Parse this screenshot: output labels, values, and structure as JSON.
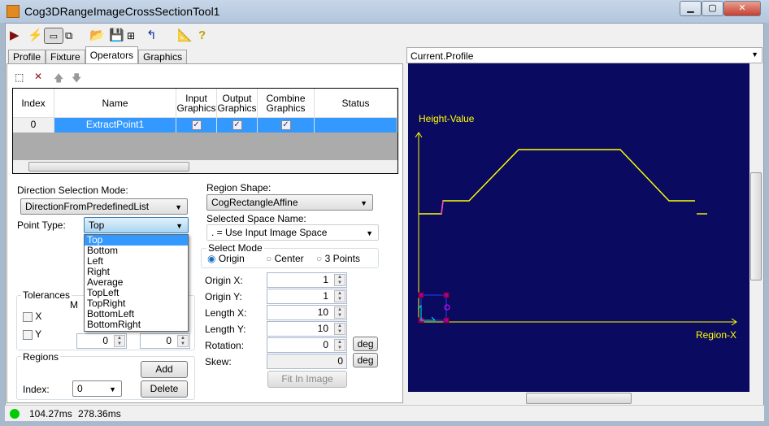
{
  "window": {
    "title": "Cog3DRangeImageCrossSectionTool1",
    "controls": [
      "minimize",
      "maximize",
      "close"
    ]
  },
  "toolbar": {
    "icons": [
      "run-icon",
      "electric-icon",
      "show-controls-icon",
      "floating-icon",
      "open-icon",
      "save-icon",
      "save-as-icon",
      "reset-icon",
      "measure-icon",
      "help-icon"
    ]
  },
  "tabs": [
    {
      "label": "Profile"
    },
    {
      "label": "Fixture"
    },
    {
      "label": "Operators",
      "active": true
    },
    {
      "label": "Graphics"
    }
  ],
  "operators": {
    "columns": [
      "Index",
      "Name",
      "Input Graphics",
      "Output Graphics",
      "Combine Graphics",
      "Status"
    ],
    "rows": [
      {
        "index": "0",
        "name": "ExtractPoint1",
        "input": true,
        "output": true,
        "combine": true,
        "status": ""
      }
    ]
  },
  "form": {
    "direction_label": "Direction Selection Mode:",
    "direction_value": "DirectionFromPredefinedList",
    "point_type_label": "Point Type:",
    "point_type_value": "Top",
    "point_type_options": [
      "Top",
      "Bottom",
      "Left",
      "Right",
      "Average",
      "TopLeft",
      "TopRight",
      "BottomLeft",
      "BottomRight"
    ],
    "tolerances_label": "Tolerances",
    "tol_hidden_label": "M",
    "tol_x": "X",
    "tol_y": "Y",
    "tol_y_min": "0",
    "tol_y_max": "0",
    "regions_label": "Regions",
    "add": "Add",
    "delete": "Delete",
    "index_label": "Index:",
    "index_value": "0",
    "region_shape_label": "Region Shape:",
    "region_shape_value": "CogRectangleAffine",
    "space_label": "Selected Space Name:",
    "space_value": ". = Use Input Image Space",
    "select_mode_label": "Select Mode",
    "modes": [
      "Origin",
      "Center",
      "3 Points"
    ],
    "mode_selected": "Origin",
    "fields": [
      {
        "label": "Origin X:",
        "value": "1"
      },
      {
        "label": "Origin Y:",
        "value": "1"
      },
      {
        "label": "Length X:",
        "value": "10"
      },
      {
        "label": "Length Y:",
        "value": "10"
      },
      {
        "label": "Rotation:",
        "value": "0",
        "unit": "deg"
      },
      {
        "label": "Skew:",
        "value": "0",
        "unit": "deg"
      }
    ],
    "fit": "Fit In Image"
  },
  "viewer": {
    "selected": "Current.Profile",
    "y_label": "Height-Value",
    "x_label": "Region-X",
    "background": "#0a0a60",
    "profile_color": "#ffff00"
  },
  "status": {
    "time1": "104.27ms",
    "time2": "278.36ms",
    "indicator_color": "#00cc00"
  }
}
